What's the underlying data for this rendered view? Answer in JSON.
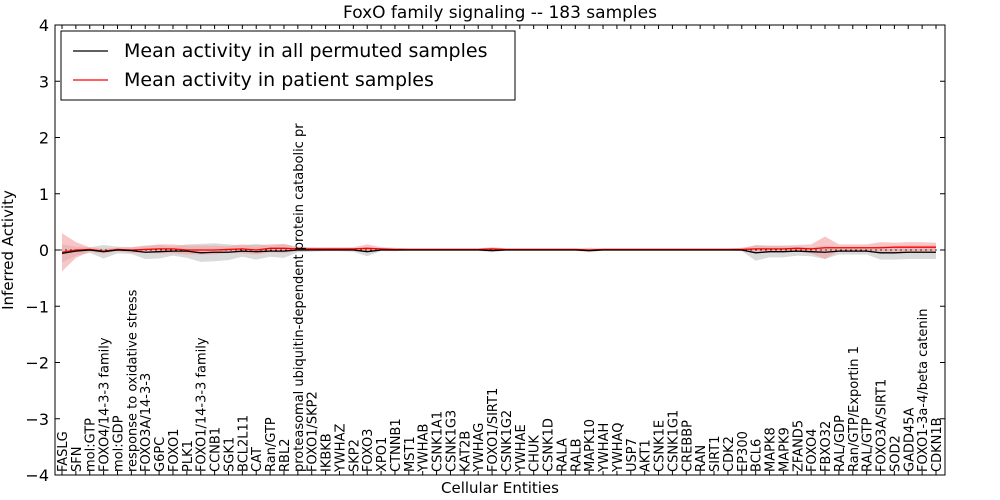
{
  "chart_data": {
    "type": "line",
    "title": "FoxO family signaling -- 183 samples",
    "xlabel": "Cellular Entities",
    "ylabel": "Inferred Activity",
    "ylim": [
      -4,
      4
    ],
    "yticks": [
      -4,
      -3,
      -2,
      -1,
      0,
      1,
      2,
      3,
      4
    ],
    "ytick_labels": [
      "−4",
      "−3",
      "−2",
      "−1",
      "0",
      "1",
      "2",
      "3",
      "4"
    ],
    "grid": false,
    "legend_position": "top-left",
    "categories": [
      "FASLG",
      "SFN",
      "mol:GTP",
      "FOXO4/14-3-3 family",
      "mol:GDP",
      "response to oxidative stress",
      "FOXO3A/14-3-3",
      "G6PC",
      "FOXO1",
      "PLK1",
      "FOXO1/14-3-3 family",
      "CCNB1",
      "SGK1",
      "BCL2L11",
      "CAT",
      "Ran/GTP",
      "RBL2",
      "proteasomal ubiquitin-dependent protein catabolic pr",
      "FOXO1/SKP2",
      "IKBKB",
      "YWHAZ",
      "SKP2",
      "FOXO3",
      "XPO1",
      "CTNNB1",
      "MST1",
      "YWHAB",
      "CSNK1A1",
      "CSNK1G3",
      "KAT2B",
      "YWHAG",
      "FOXO1/SIRT1",
      "CSNK1G2",
      "YWHAE",
      "CHUK",
      "CSNK1D",
      "RALA",
      "RALB",
      "MAPK10",
      "YWHAH",
      "YWHAQ",
      "USP7",
      "AKT1",
      "CSNK1E",
      "CSNK1G1",
      "CREBBP",
      "RAN",
      "SIRT1",
      "CDK2",
      "EP300",
      "BCL6",
      "MAPK8",
      "MAPK9",
      "ZFAND5",
      "FOXO4",
      "FBXO32",
      "RAL/GDP",
      "Ran/GTP/Exportin 1",
      "RAL/GTP",
      "FOXO3A/SIRT1",
      "SOD2",
      "GADD45A",
      "FOXO1-3a-4/beta catenin",
      "CDKN1B"
    ],
    "series": [
      {
        "name": "Mean activity in all permuted samples",
        "color": "#000000",
        "band_color": "#bbbbbb",
        "values": [
          -0.06,
          -0.02,
          0.0,
          -0.03,
          0.0,
          -0.01,
          -0.04,
          -0.03,
          -0.02,
          -0.02,
          -0.05,
          -0.04,
          -0.04,
          -0.02,
          -0.03,
          -0.02,
          -0.02,
          0.0,
          0.0,
          0.0,
          0.0,
          0.0,
          -0.03,
          0.0,
          0.0,
          0.0,
          0.0,
          0.0,
          0.0,
          0.0,
          0.0,
          -0.01,
          0.0,
          0.0,
          0.0,
          0.0,
          0.0,
          0.0,
          -0.01,
          0.0,
          0.0,
          0.0,
          0.0,
          0.0,
          0.0,
          0.0,
          0.0,
          0.0,
          0.0,
          0.0,
          -0.05,
          -0.03,
          -0.03,
          -0.02,
          -0.03,
          -0.04,
          -0.02,
          -0.02,
          -0.02,
          -0.05,
          -0.05,
          -0.04,
          -0.04,
          -0.04
        ],
        "spread": [
          0.16,
          0.08,
          0.05,
          0.12,
          0.06,
          0.06,
          0.12,
          0.12,
          0.08,
          0.12,
          0.16,
          0.16,
          0.14,
          0.1,
          0.14,
          0.1,
          0.12,
          0.04,
          0.03,
          0.02,
          0.02,
          0.03,
          0.08,
          0.02,
          0.02,
          0.01,
          0.01,
          0.01,
          0.01,
          0.01,
          0.01,
          0.03,
          0.01,
          0.01,
          0.01,
          0.01,
          0.01,
          0.01,
          0.02,
          0.01,
          0.01,
          0.01,
          0.01,
          0.01,
          0.01,
          0.01,
          0.01,
          0.01,
          0.01,
          0.02,
          0.14,
          0.1,
          0.1,
          0.08,
          0.08,
          0.12,
          0.06,
          0.06,
          0.06,
          0.12,
          0.12,
          0.12,
          0.12,
          0.12
        ]
      },
      {
        "name": "Mean activity in patient samples",
        "color": "#ff0000",
        "band_color": "#f4a0a0",
        "values": [
          -0.04,
          0.0,
          0.01,
          -0.02,
          0.01,
          0.0,
          0.01,
          0.02,
          0.02,
          0.0,
          0.0,
          0.0,
          0.01,
          0.02,
          0.0,
          0.03,
          0.03,
          0.02,
          0.02,
          0.02,
          0.02,
          0.02,
          0.03,
          0.02,
          0.01,
          0.01,
          0.01,
          0.01,
          0.01,
          0.01,
          0.01,
          0.02,
          0.01,
          0.01,
          0.01,
          0.01,
          0.01,
          0.01,
          0.0,
          0.01,
          0.01,
          0.01,
          0.01,
          0.01,
          0.01,
          0.01,
          0.01,
          0.01,
          0.01,
          0.01,
          0.02,
          0.02,
          0.02,
          0.03,
          0.02,
          0.04,
          0.04,
          0.04,
          0.04,
          0.04,
          0.05,
          0.05,
          0.05,
          0.05
        ],
        "spread": [
          0.34,
          0.14,
          0.04,
          0.04,
          0.03,
          0.05,
          0.06,
          0.08,
          0.08,
          0.08,
          0.08,
          0.08,
          0.06,
          0.08,
          0.08,
          0.07,
          0.08,
          0.04,
          0.03,
          0.03,
          0.03,
          0.03,
          0.07,
          0.03,
          0.03,
          0.02,
          0.02,
          0.02,
          0.02,
          0.02,
          0.02,
          0.03,
          0.02,
          0.02,
          0.02,
          0.02,
          0.02,
          0.02,
          0.04,
          0.02,
          0.02,
          0.02,
          0.02,
          0.02,
          0.02,
          0.02,
          0.02,
          0.02,
          0.02,
          0.03,
          0.06,
          0.06,
          0.06,
          0.06,
          0.08,
          0.2,
          0.06,
          0.06,
          0.06,
          0.1,
          0.08,
          0.09,
          0.09,
          0.08
        ]
      }
    ]
  }
}
